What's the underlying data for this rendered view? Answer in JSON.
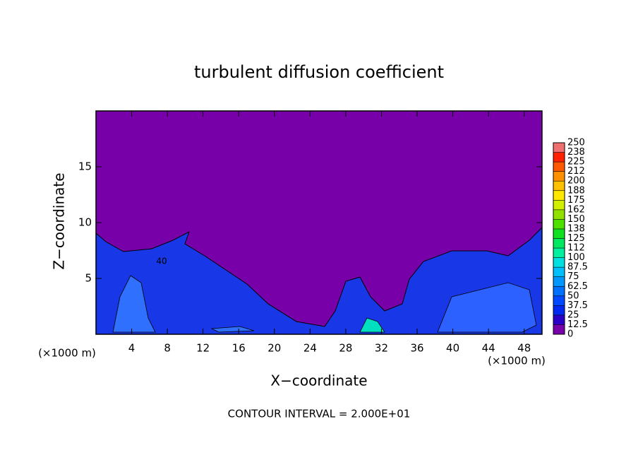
{
  "chart_data": {
    "type": "contour",
    "title": "turbulent diffusion coefficient",
    "x_label": "X−coordinate",
    "y_label": "Z−coordinate",
    "x_unit_left": "(×1000 m)",
    "x_unit_right": "(×1000 m)",
    "annotation": "CONTOUR INTERVAL = 2.000E+01",
    "contour_label": "40",
    "xlim": [
      0,
      50
    ],
    "xticks": [
      4,
      8,
      12,
      16,
      20,
      24,
      28,
      32,
      36,
      40,
      44,
      48
    ],
    "ylim": [
      0,
      20
    ],
    "yticks": [
      5,
      10,
      15
    ],
    "colorbar": {
      "levels": [
        0,
        12.5,
        25,
        37.5,
        50,
        62.5,
        75,
        87.5,
        100,
        112,
        125,
        138,
        150,
        162,
        175,
        188,
        200,
        212,
        225,
        238,
        250
      ],
      "colors": [
        "#7800a8",
        "#2a00c8",
        "#0028f0",
        "#0048ff",
        "#0070ff",
        "#0098ff",
        "#00c0ff",
        "#00e0e0",
        "#00f0a0",
        "#00e860",
        "#10e020",
        "#50e000",
        "#90e000",
        "#d0f000",
        "#ffe800",
        "#ffc000",
        "#ff9000",
        "#ff5800",
        "#ff2000",
        "#f07070"
      ]
    }
  }
}
